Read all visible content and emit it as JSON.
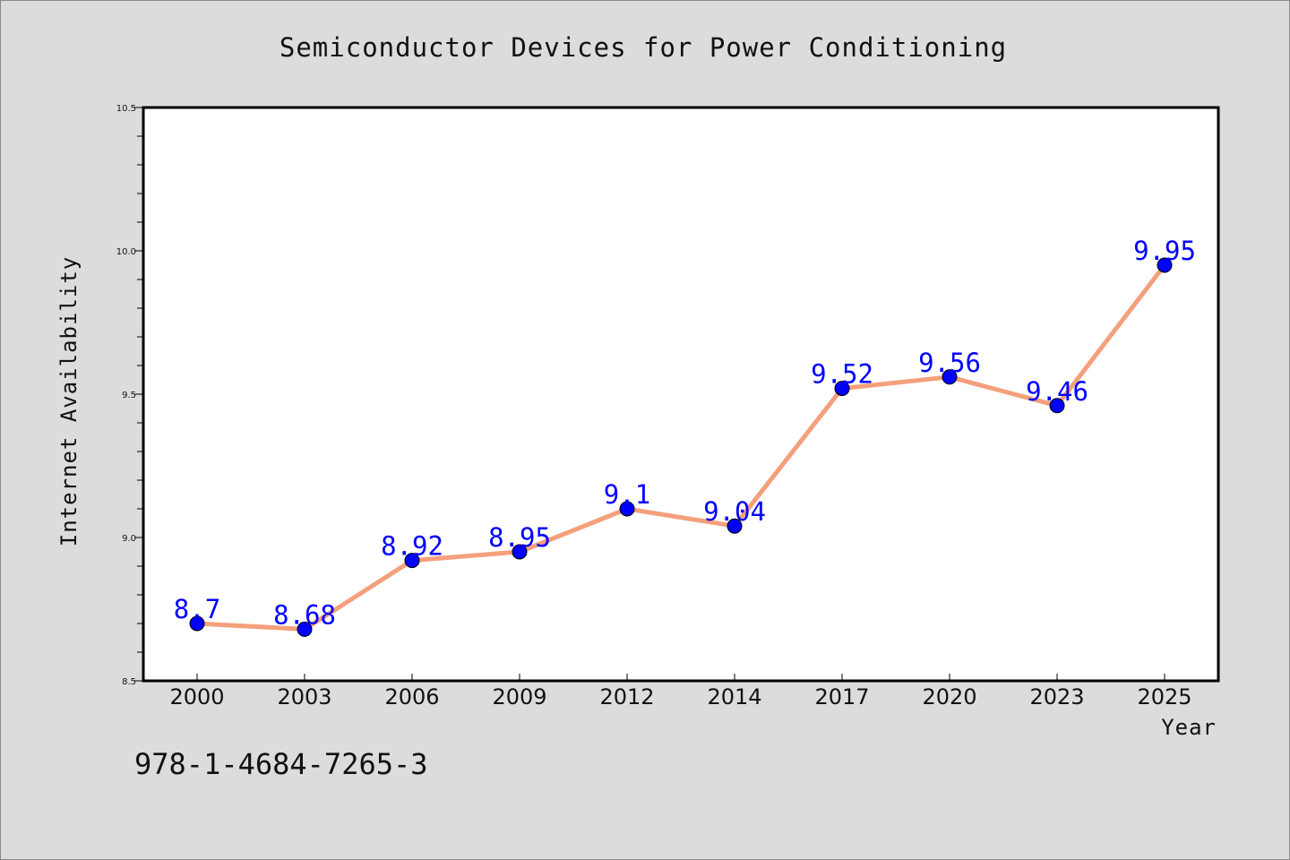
{
  "chart_data": {
    "type": "line",
    "title": "Semiconductor Devices for Power Conditioning",
    "xlabel": "Year",
    "ylabel": "Internet Availability",
    "categories": [
      "2000",
      "2003",
      "2006",
      "2009",
      "2012",
      "2014",
      "2017",
      "2020",
      "2023",
      "2025"
    ],
    "values": [
      8.7,
      8.68,
      8.92,
      8.95,
      9.1,
      9.04,
      9.52,
      9.56,
      9.46,
      9.95
    ],
    "data_labels": [
      "8.7",
      "8.68",
      "8.92",
      "8.95",
      "9.1",
      "9.04",
      "9.52",
      "9.56",
      "9.46",
      "9.95"
    ],
    "yticks": [
      "8.5",
      "9.0",
      "9.5",
      "10.0",
      "10.5"
    ],
    "ylim": [
      8.5,
      10.5
    ],
    "grid": false,
    "colors": {
      "line": "#f4a07c",
      "marker": "#0000ff",
      "label": "#0000ff",
      "background": "#dcdcdc",
      "plot_bg": "#ffffff"
    }
  },
  "footer": {
    "isbn": "978-1-4684-7265-3"
  }
}
